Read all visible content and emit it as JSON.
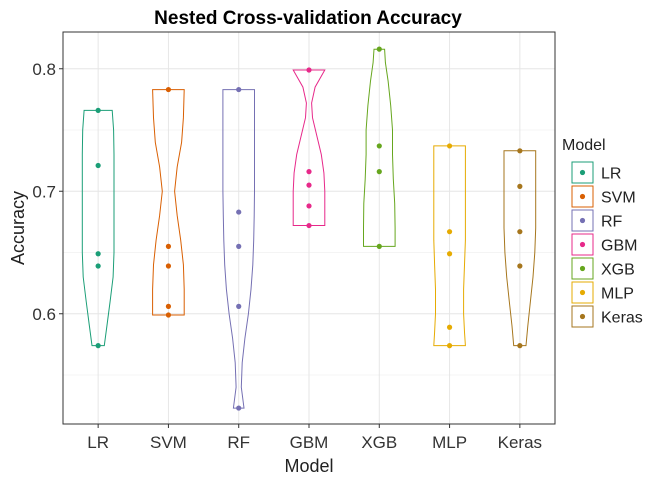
{
  "chart_data": {
    "type": "violin",
    "title": "Nested Cross-validation Accuracy",
    "xlabel": "Model",
    "ylabel": "Accuracy",
    "ylim": [
      0.51,
      0.83
    ],
    "yticks": [
      0.6,
      0.7,
      0.8
    ],
    "ytick_labels": [
      "0.6",
      "0.7",
      "0.8"
    ],
    "grid": true,
    "legend": {
      "title": "Model",
      "placement": "right"
    },
    "categories": [
      "LR",
      "SVM",
      "RF",
      "GBM",
      "XGB",
      "MLP",
      "Keras"
    ],
    "series": [
      {
        "name": "LR",
        "color": "#1B9E77",
        "values": [
          0.574,
          0.639,
          0.649,
          0.721,
          0.766
        ],
        "violin": [
          [
            0.574,
            0.035
          ],
          [
            0.59,
            0.05
          ],
          [
            0.61,
            0.068
          ],
          [
            0.63,
            0.085
          ],
          [
            0.65,
            0.09
          ],
          [
            0.67,
            0.09
          ],
          [
            0.69,
            0.09
          ],
          [
            0.71,
            0.09
          ],
          [
            0.73,
            0.09
          ],
          [
            0.75,
            0.088
          ],
          [
            0.766,
            0.08
          ]
        ]
      },
      {
        "name": "SVM",
        "color": "#D95F02",
        "values": [
          0.599,
          0.606,
          0.639,
          0.655,
          0.783
        ],
        "violin": [
          [
            0.599,
            0.09
          ],
          [
            0.61,
            0.09
          ],
          [
            0.62,
            0.09
          ],
          [
            0.64,
            0.085
          ],
          [
            0.66,
            0.07
          ],
          [
            0.68,
            0.05
          ],
          [
            0.7,
            0.035
          ],
          [
            0.72,
            0.05
          ],
          [
            0.74,
            0.075
          ],
          [
            0.76,
            0.085
          ],
          [
            0.783,
            0.09
          ]
        ]
      },
      {
        "name": "RF",
        "color": "#7570B3",
        "values": [
          0.523,
          0.606,
          0.655,
          0.683,
          0.783
        ],
        "violin": [
          [
            0.523,
            0.03
          ],
          [
            0.54,
            0.015
          ],
          [
            0.56,
            0.02
          ],
          [
            0.58,
            0.035
          ],
          [
            0.6,
            0.055
          ],
          [
            0.62,
            0.07
          ],
          [
            0.64,
            0.08
          ],
          [
            0.66,
            0.085
          ],
          [
            0.68,
            0.088
          ],
          [
            0.7,
            0.09
          ],
          [
            0.72,
            0.09
          ],
          [
            0.74,
            0.09
          ],
          [
            0.76,
            0.09
          ],
          [
            0.783,
            0.09
          ]
        ]
      },
      {
        "name": "GBM",
        "color": "#E7298A",
        "values": [
          0.672,
          0.688,
          0.705,
          0.716,
          0.799
        ],
        "violin": [
          [
            0.672,
            0.09
          ],
          [
            0.685,
            0.09
          ],
          [
            0.7,
            0.09
          ],
          [
            0.715,
            0.085
          ],
          [
            0.73,
            0.07
          ],
          [
            0.745,
            0.045
          ],
          [
            0.76,
            0.02
          ],
          [
            0.772,
            0.015
          ],
          [
            0.785,
            0.035
          ],
          [
            0.799,
            0.09
          ]
        ]
      },
      {
        "name": "XGB",
        "color": "#66A61E",
        "values": [
          0.655,
          0.716,
          0.737,
          0.816
        ],
        "violin": [
          [
            0.655,
            0.09
          ],
          [
            0.67,
            0.09
          ],
          [
            0.69,
            0.088
          ],
          [
            0.71,
            0.08
          ],
          [
            0.73,
            0.075
          ],
          [
            0.75,
            0.075
          ],
          [
            0.77,
            0.065
          ],
          [
            0.79,
            0.05
          ],
          [
            0.805,
            0.035
          ],
          [
            0.816,
            0.03
          ]
        ]
      },
      {
        "name": "MLP",
        "color": "#E6AB02",
        "values": [
          0.574,
          0.589,
          0.649,
          0.667,
          0.737
        ],
        "violin": [
          [
            0.574,
            0.09
          ],
          [
            0.585,
            0.085
          ],
          [
            0.6,
            0.08
          ],
          [
            0.62,
            0.08
          ],
          [
            0.64,
            0.085
          ],
          [
            0.66,
            0.09
          ],
          [
            0.68,
            0.09
          ],
          [
            0.7,
            0.09
          ],
          [
            0.72,
            0.09
          ],
          [
            0.737,
            0.09
          ]
        ]
      },
      {
        "name": "Keras",
        "color": "#A6761D",
        "values": [
          0.574,
          0.639,
          0.667,
          0.704,
          0.733
        ],
        "violin": [
          [
            0.574,
            0.035
          ],
          [
            0.59,
            0.045
          ],
          [
            0.61,
            0.06
          ],
          [
            0.63,
            0.075
          ],
          [
            0.65,
            0.085
          ],
          [
            0.67,
            0.09
          ],
          [
            0.69,
            0.09
          ],
          [
            0.71,
            0.09
          ],
          [
            0.733,
            0.09
          ]
        ]
      }
    ]
  }
}
